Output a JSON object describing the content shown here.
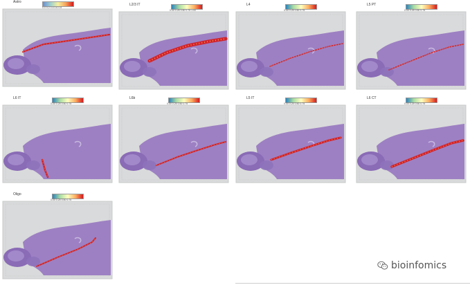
{
  "panels": [
    {
      "label": "Astro",
      "ticks": "0.0   0.2   0.4   0.6   0.8",
      "colormap": "astro"
    },
    {
      "label": "L2/3 IT",
      "ticks": "0.00  0.25  0.50  0.75  1.00",
      "colormap": "spectral"
    },
    {
      "label": "L4",
      "ticks": "0.00  0.25  0.50  0.75",
      "colormap": "spectral"
    },
    {
      "label": "L5 PT",
      "ticks": "0.00  0.25  0.50  0.75",
      "colormap": "spectral"
    },
    {
      "label": "L6 IT",
      "ticks": "0.00  0.25  0.50  0.75",
      "colormap": "spectral"
    },
    {
      "label": "L6b",
      "ticks": "0.00  0.25  0.50  0.75",
      "colormap": "spectral"
    },
    {
      "label": "L5 IT",
      "ticks": "0.00  0.25  0.50  0.75",
      "colormap": "spectral"
    },
    {
      "label": "L6 CT",
      "ticks": "0.00  0.25  0.50  0.75",
      "colormap": "spectral"
    },
    {
      "label": "Oligo",
      "ticks": "0.00  0.25  0.50  0.75",
      "colormap": "spectral"
    }
  ],
  "watermark": {
    "text": "bioinfomics",
    "icon": "wechat-icon"
  },
  "colors": {
    "tissue": "#9a7bc2",
    "frame": "#d9dadb",
    "hot": "#d7191c"
  }
}
